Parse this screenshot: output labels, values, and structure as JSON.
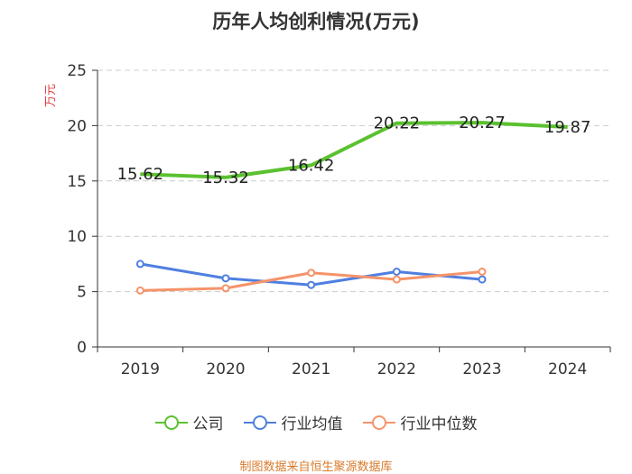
{
  "chart_data": {
    "type": "line",
    "title": "历年人均创利情况(万元)",
    "ylabel": "万元",
    "xlabel": "",
    "categories": [
      "2019",
      "2020",
      "2021",
      "2022",
      "2023",
      "2024"
    ],
    "ylim": [
      0,
      25
    ],
    "yticks": [
      0,
      5,
      10,
      15,
      20,
      25
    ],
    "grid": true,
    "legend_position": "bottom",
    "series": [
      {
        "name": "公司",
        "color": "#5bc12f",
        "values": [
          15.62,
          15.32,
          16.42,
          20.22,
          20.27,
          19.87
        ],
        "value_labels": [
          "15.62",
          "15.32",
          "16.42",
          "20.22",
          "20.27",
          "19.87"
        ]
      },
      {
        "name": "行业均值",
        "color": "#4f7fe0",
        "values": [
          7.5,
          6.2,
          5.6,
          6.8,
          6.1,
          null
        ]
      },
      {
        "name": "行业中位数",
        "color": "#f5936a",
        "values": [
          5.1,
          5.3,
          6.7,
          6.1,
          6.8,
          null
        ]
      }
    ]
  },
  "source": "制图数据来自恒生聚源数据库"
}
